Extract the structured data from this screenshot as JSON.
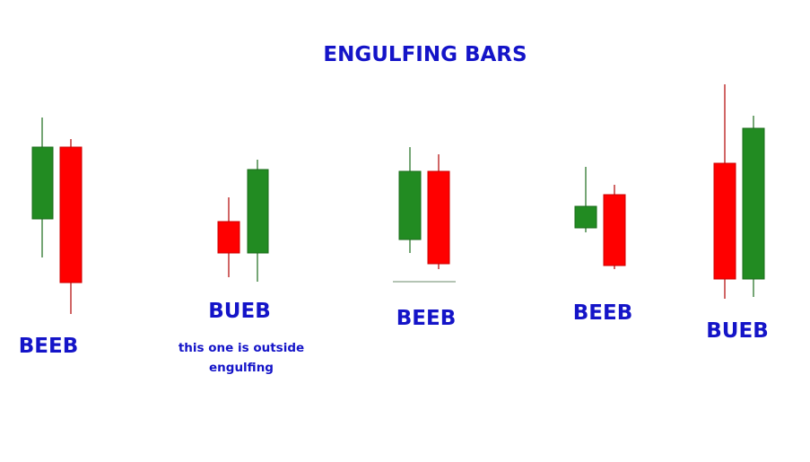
{
  "title": "ENGULFING BARS",
  "patterns": [
    {
      "label": "BEEB"
    },
    {
      "label": "BUEB",
      "note": "this one is outside engulfing"
    },
    {
      "label": "BEEB"
    },
    {
      "label": "BEEB"
    },
    {
      "label": "BUEB"
    }
  ]
}
